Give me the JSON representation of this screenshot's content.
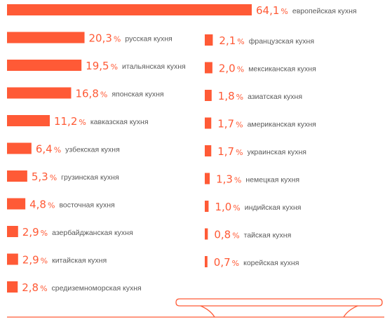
{
  "chart_data": {
    "type": "bar",
    "orientation": "horizontal",
    "title": "",
    "xlabel": "",
    "ylabel": "",
    "xlim": [
      0,
      64.1
    ],
    "grid": false,
    "legend": "none",
    "bar_color": "#ff5a36",
    "value_suffix": "%",
    "columns": [
      {
        "items": [
          {
            "label": "европейская кухня",
            "value": 64.1,
            "display": "64,1"
          },
          {
            "label": "русская кухня",
            "value": 20.3,
            "display": "20,3"
          },
          {
            "label": "итальянская кухня",
            "value": 19.5,
            "display": "19,5"
          },
          {
            "label": "японская кухня",
            "value": 16.8,
            "display": "16,8"
          },
          {
            "label": "кавказская кухня",
            "value": 11.2,
            "display": "11,2"
          },
          {
            "label": "узбекская кухня",
            "value": 6.4,
            "display": "6,4"
          },
          {
            "label": "грузинская кухня",
            "value": 5.3,
            "display": "5,3"
          },
          {
            "label": "восточная кухня",
            "value": 4.8,
            "display": "4,8"
          },
          {
            "label": "азербайджанская кухня",
            "value": 2.9,
            "display": "2,9"
          },
          {
            "label": "китайская кухня",
            "value": 2.9,
            "display": "2,9"
          },
          {
            "label": "средиземноморская кухня",
            "value": 2.8,
            "display": "2,8"
          }
        ]
      },
      {
        "items": [
          {
            "label": "французская кухня",
            "value": 2.1,
            "display": "2,1"
          },
          {
            "label": "мексиканская кухня",
            "value": 2.0,
            "display": "2,0"
          },
          {
            "label": "азиатская кухня",
            "value": 1.8,
            "display": "1,8"
          },
          {
            "label": "американская кухня",
            "value": 1.7,
            "display": "1,7"
          },
          {
            "label": "украинская кухня",
            "value": 1.7,
            "display": "1,7"
          },
          {
            "label": "немецкая кухня",
            "value": 1.3,
            "display": "1,3"
          },
          {
            "label": "индийская кухня",
            "value": 1.0,
            "display": "1,0"
          },
          {
            "label": "тайская кухня",
            "value": 0.8,
            "display": "0,8"
          },
          {
            "label": "корейская кухня",
            "value": 0.7,
            "display": "0,7"
          }
        ]
      }
    ]
  }
}
